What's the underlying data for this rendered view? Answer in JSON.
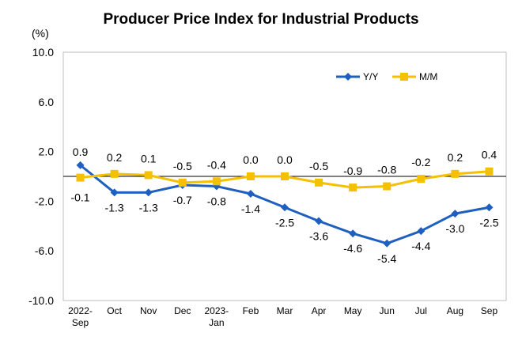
{
  "chart_data": {
    "type": "line",
    "title": "Producer Price Index for Industrial Products",
    "ylabel": "(%)",
    "xlabel": "",
    "ylim": [
      -10.0,
      10.0
    ],
    "yticks": [
      "10.0",
      "6.0",
      "2.0",
      "-2.0",
      "-6.0",
      "-10.0"
    ],
    "ytick_values": [
      10,
      6,
      2,
      -2,
      -6,
      -10
    ],
    "categories": [
      [
        "2022-",
        "Sep"
      ],
      [
        "Oct"
      ],
      [
        "Nov"
      ],
      [
        "Dec"
      ],
      [
        "2023-",
        "Jan"
      ],
      [
        "Feb"
      ],
      [
        "Mar"
      ],
      [
        "Apr"
      ],
      [
        "May"
      ],
      [
        "Jun"
      ],
      [
        "Jul"
      ],
      [
        "Aug"
      ],
      [
        "Sep"
      ]
    ],
    "legend_position": "top-right",
    "grid": false,
    "series": [
      {
        "name": "Y/Y",
        "color": "#1f5fbf",
        "marker": "diamond",
        "values": [
          0.9,
          -1.3,
          -1.3,
          -0.7,
          -0.8,
          -1.4,
          -2.5,
          -3.6,
          -4.6,
          -5.4,
          -4.4,
          -3.0,
          -2.5
        ],
        "labels": [
          "0.9",
          "-1.3",
          "-1.3",
          "-0.7",
          "-0.8",
          "-1.4",
          "-2.5",
          "-3.6",
          "-4.6",
          "-5.4",
          "-4.4",
          "-3.0",
          "-2.5"
        ]
      },
      {
        "name": "M/M",
        "color": "#f5c000",
        "marker": "square",
        "values": [
          -0.1,
          0.2,
          0.1,
          -0.5,
          -0.4,
          0.0,
          0.0,
          -0.5,
          -0.9,
          -0.8,
          -0.2,
          0.2,
          0.4
        ],
        "labels": [
          "-0.1",
          "0.2",
          "0.1",
          "-0.5",
          "-0.4",
          "0.0",
          "0.0",
          "-0.5",
          "-0.9",
          "-0.8",
          "-0.2",
          "0.2",
          "0.4"
        ]
      }
    ]
  }
}
